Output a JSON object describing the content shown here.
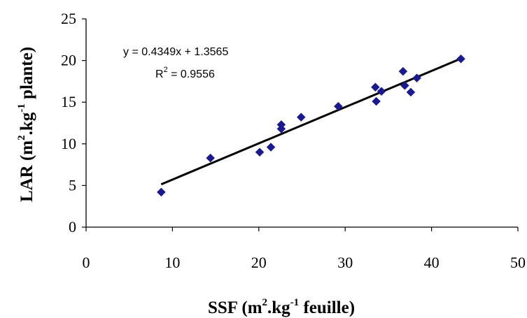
{
  "chart_data": {
    "type": "scatter",
    "xlabel": {
      "prefix": "SSF (m",
      "sup1": "2",
      "mid": ".kg",
      "sup2": "-1",
      "suffix": " feuille)"
    },
    "ylabel": {
      "prefix": "LAR (m",
      "sup1": "2",
      "mid": ".kg",
      "sup2": "-1",
      "suffix": " plante)"
    },
    "xlim": [
      0,
      50
    ],
    "ylim": [
      0,
      25
    ],
    "x_ticks": [
      "0",
      "10",
      "20",
      "30",
      "40",
      "50"
    ],
    "y_ticks": [
      "0",
      "5",
      "10",
      "15",
      "20",
      "25"
    ],
    "grid": false,
    "marker": "diamond",
    "marker_color": "#1a1a8c",
    "series": [
      {
        "x": [
          8.7,
          14.4,
          20.1,
          21.4,
          22.6,
          22.6,
          24.9,
          29.2,
          33.5,
          33.6,
          34.2,
          36.7,
          36.9,
          37.6,
          38.3,
          43.4
        ],
        "y": [
          4.2,
          8.3,
          9.0,
          9.6,
          12.3,
          11.8,
          13.2,
          14.5,
          16.8,
          15.1,
          16.3,
          18.7,
          17.0,
          16.2,
          17.9,
          20.2
        ]
      }
    ],
    "trendline": {
      "slope": 0.4349,
      "intercept": 1.3565,
      "x_range": [
        8.7,
        43.4
      ],
      "color": "#000000"
    },
    "annotations": {
      "equation": "y = 0.4349x + 1.3565",
      "r2_prefix": "R",
      "r2_sup": "2",
      "r2_value": " = 0.9556"
    }
  }
}
